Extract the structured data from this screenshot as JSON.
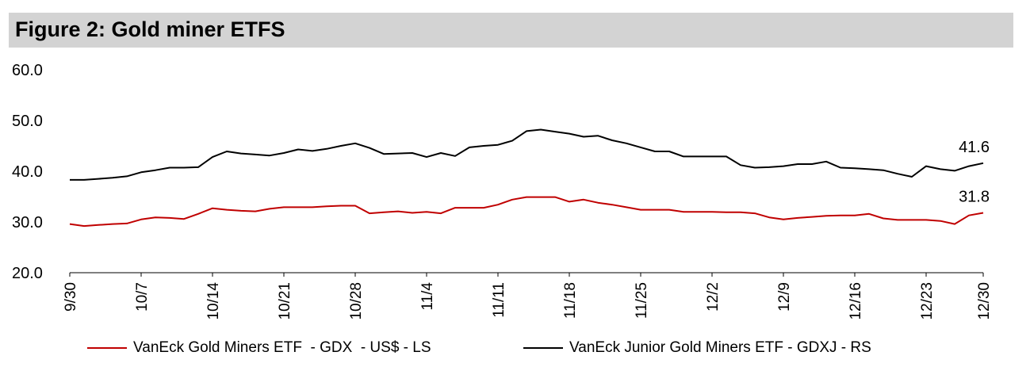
{
  "header": {
    "title": "Figure 2: Gold miner ETFS"
  },
  "chart_data": {
    "type": "line",
    "title": "Figure 2: Gold miner ETFS",
    "xlabel": "",
    "ylabel": "",
    "ylim": [
      20,
      60
    ],
    "yticks": [
      "60.0",
      "50.0",
      "40.0",
      "30.0",
      "20.0"
    ],
    "ytick_values": [
      60,
      50,
      40,
      30,
      20
    ],
    "x_count": 65,
    "xtick_labels": [
      {
        "i": 0,
        "label": "9/30"
      },
      {
        "i": 5,
        "label": "10/7"
      },
      {
        "i": 10,
        "label": "10/14"
      },
      {
        "i": 15,
        "label": "10/21"
      },
      {
        "i": 20,
        "label": "10/28"
      },
      {
        "i": 25,
        "label": "11/4"
      },
      {
        "i": 30,
        "label": "11/11"
      },
      {
        "i": 35,
        "label": "11/18"
      },
      {
        "i": 40,
        "label": "11/25"
      },
      {
        "i": 45,
        "label": "12/2"
      },
      {
        "i": 50,
        "label": "12/9"
      },
      {
        "i": 55,
        "label": "12/16"
      },
      {
        "i": 60,
        "label": "12/23"
      },
      {
        "i": 64,
        "label": "12/30"
      }
    ],
    "series": [
      {
        "name": "VanEck Gold Miners ETF  - GDX  - US$ - LS",
        "color": "#c00000",
        "end_label": "31.8",
        "values": [
          29.6,
          29.2,
          29.4,
          29.6,
          29.7,
          30.5,
          30.9,
          30.8,
          30.6,
          31.6,
          32.7,
          32.4,
          32.2,
          32.1,
          32.6,
          32.9,
          32.9,
          32.9,
          33.1,
          33.2,
          33.2,
          31.7,
          31.9,
          32.1,
          31.8,
          32.0,
          31.7,
          32.8,
          32.8,
          32.8,
          33.4,
          34.4,
          34.9,
          34.9,
          34.9,
          34.0,
          34.4,
          33.8,
          33.4,
          32.9,
          32.4,
          32.4,
          32.4,
          32.0,
          32.0,
          32.0,
          31.9,
          31.9,
          31.7,
          30.9,
          30.5,
          30.8,
          31.0,
          31.2,
          31.3,
          31.3,
          31.6,
          30.7,
          30.4,
          30.4,
          30.4,
          30.2,
          29.6,
          31.3,
          31.8
        ]
      },
      {
        "name": "VanEck Junior Gold Miners ETF - GDXJ - RS",
        "color": "#000000",
        "end_label": "41.6",
        "values": [
          38.3,
          38.3,
          38.5,
          38.7,
          39.0,
          39.8,
          40.2,
          40.7,
          40.7,
          40.8,
          42.8,
          43.9,
          43.5,
          43.3,
          43.1,
          43.6,
          44.3,
          44.0,
          44.4,
          45.0,
          45.5,
          44.6,
          43.4,
          43.5,
          43.6,
          42.8,
          43.6,
          43.0,
          44.7,
          45.0,
          45.2,
          46.0,
          47.9,
          48.2,
          47.8,
          47.4,
          46.8,
          47.0,
          46.1,
          45.5,
          44.7,
          43.9,
          43.9,
          42.9,
          42.9,
          42.9,
          42.9,
          41.2,
          40.7,
          40.8,
          41.0,
          41.4,
          41.4,
          41.9,
          40.7,
          40.6,
          40.4,
          40.2,
          39.5,
          38.9,
          41.0,
          40.4,
          40.1,
          41.0,
          41.6
        ]
      }
    ]
  }
}
